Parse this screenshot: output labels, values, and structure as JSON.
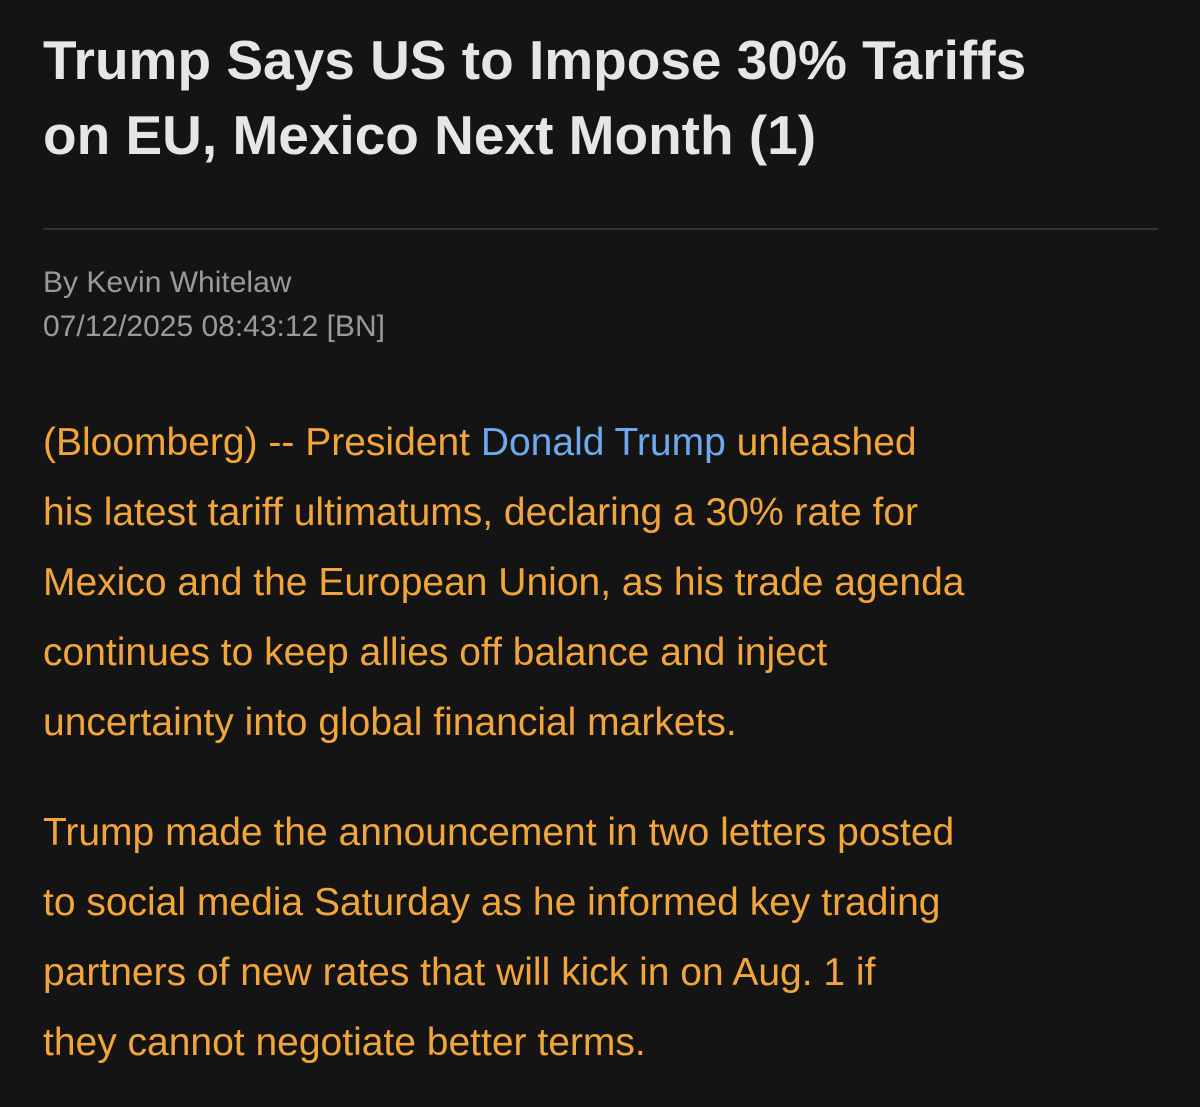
{
  "header": {
    "title": [
      "Trump Says US to Impose 30% Tariffs",
      "on EU, Mexico Next Month (1)"
    ]
  },
  "byline": {
    "author": "By Kevin Whitelaw",
    "timestamp": "07/12/2025 08:43:12 [BN]"
  },
  "body": {
    "paragraphs": [
      {
        "lines": [
          [
            "(Bloomberg) -- President ",
            "Donald Trump",
            " unleashed"
          ],
          "his latest tariff ultimatums, declaring a 30% rate for",
          "Mexico and the European Union, as his trade agenda",
          "continues to keep allies off balance and inject",
          "uncertainty into global financial markets."
        ]
      },
      {
        "lines": [
          "Trump made the announcement in two letters posted",
          "to social media Saturday as he informed key trading",
          "partners of new rates that will kick in on Aug. 1 if",
          "they cannot negotiate better terms."
        ]
      }
    ]
  }
}
